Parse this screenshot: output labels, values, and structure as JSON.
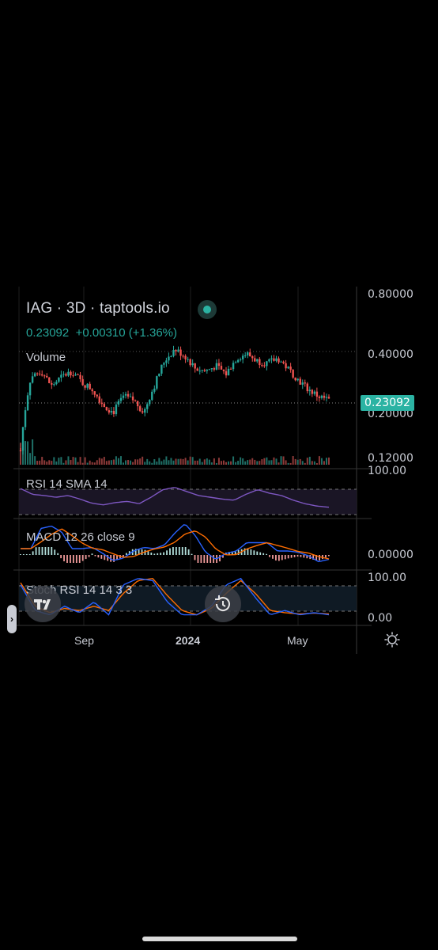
{
  "header": {
    "title": "IAG · 3D · taptools.io",
    "last": "0.23092",
    "change": "+0.00310 (+1.36%)"
  },
  "price_axis": {
    "labels": [
      "0.80000",
      "0.40000",
      "0.20000",
      "0.12000"
    ],
    "current_tag": "0.23092"
  },
  "panes": {
    "volume_label": "Volume",
    "rsi_label": "RSI 14 SMA 14",
    "rsi_axis": "100.00",
    "macd_label": "MACD 12 26 close 9",
    "macd_axis": "0.00000",
    "stoch_label": "Stoch RSI 14 14 3 3",
    "stoch_axis_top": "100.00",
    "stoch_axis_bottom": "0.00"
  },
  "time_axis": [
    "Sep",
    "2024",
    "May"
  ],
  "icons": {
    "settings": "gear-icon",
    "reset": "reset-icon",
    "logo": "tradingview-logo-icon",
    "expand": "chevron-right-icon"
  },
  "colors": {
    "up": "#26a69a",
    "down": "#ef5350",
    "rsi": "#7e57c2",
    "macd": "#2962ff",
    "signal": "#ff6d00",
    "stoch_k": "#2962ff",
    "stoch_d": "#ff6d00"
  },
  "chart_data": {
    "type": "candlestick",
    "symbol": "IAG",
    "interval": "3D",
    "y_scale": "log",
    "ylim": [
      0.12,
      0.8
    ],
    "close_path": [
      0.13,
      0.3,
      0.32,
      0.27,
      0.3,
      0.32,
      0.28,
      0.26,
      0.22,
      0.2,
      0.24,
      0.23,
      0.2,
      0.27,
      0.36,
      0.41,
      0.38,
      0.33,
      0.32,
      0.34,
      0.31,
      0.37,
      0.39,
      0.36,
      0.35,
      0.37,
      0.33,
      0.29,
      0.26,
      0.24,
      0.231
    ],
    "rsi_path": [
      70,
      60,
      58,
      55,
      58,
      52,
      45,
      42,
      46,
      48,
      44,
      55,
      68,
      72,
      65,
      58,
      55,
      52,
      50,
      60,
      68,
      62,
      58,
      50,
      44,
      40,
      38
    ],
    "stoch_k": [
      80,
      20,
      10,
      30,
      15,
      40,
      10,
      80,
      95,
      90,
      40,
      10,
      10,
      30,
      80,
      95,
      50,
      10,
      20,
      10,
      15,
      10
    ],
    "stoch_d": [
      85,
      30,
      15,
      25,
      20,
      30,
      20,
      60,
      90,
      95,
      55,
      20,
      10,
      25,
      60,
      90,
      60,
      20,
      15,
      12,
      14,
      12
    ]
  }
}
